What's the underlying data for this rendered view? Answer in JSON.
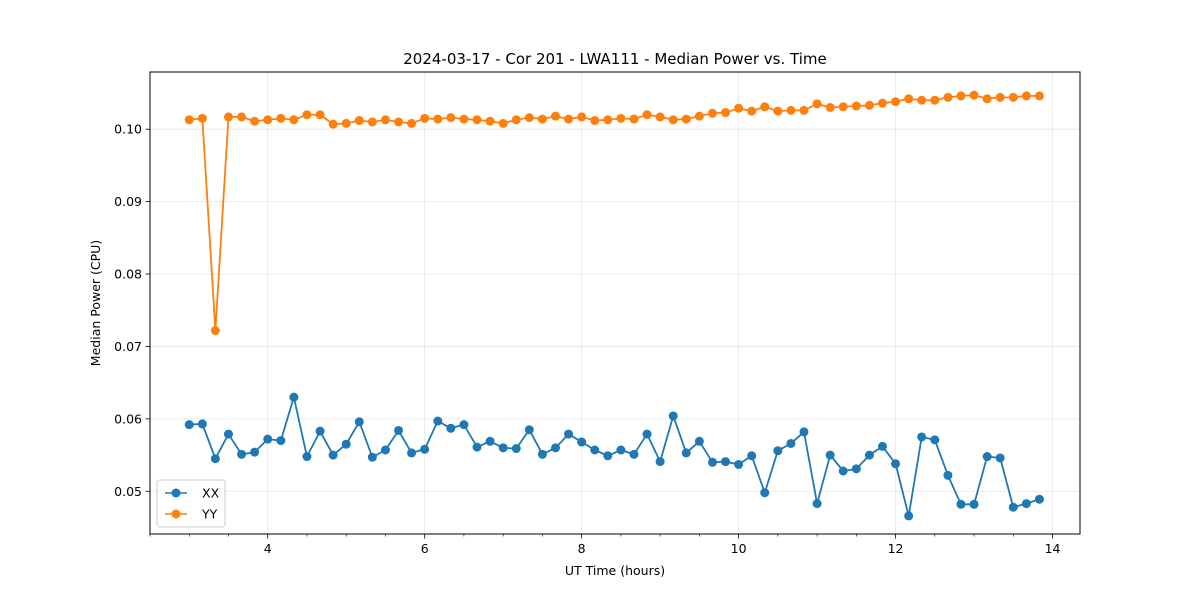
{
  "chart_data": {
    "type": "line",
    "title": "2024-03-17 - Cor 201 - LWA111 - Median Power vs. Time",
    "xlabel": "UT Time (hours)",
    "ylabel": "Median Power (CPU)",
    "xlim": [
      2.5,
      14.35
    ],
    "ylim": [
      0.0441,
      0.1079
    ],
    "xticks": [
      4,
      6,
      8,
      10,
      12,
      14
    ],
    "yticks": [
      0.05,
      0.06,
      0.07,
      0.08,
      0.09,
      0.1
    ],
    "xtick_labels": [
      "4",
      "6",
      "8",
      "10",
      "12",
      "14"
    ],
    "ytick_labels": [
      "0.05",
      "0.06",
      "0.07",
      "0.08",
      "0.09",
      "0.10"
    ],
    "grid": true,
    "legend_position": "lower-left",
    "x": [
      3.0,
      3.167,
      3.333,
      3.5,
      3.667,
      3.833,
      4.0,
      4.167,
      4.333,
      4.5,
      4.667,
      4.833,
      5.0,
      5.167,
      5.333,
      5.5,
      5.667,
      5.833,
      6.0,
      6.167,
      6.333,
      6.5,
      6.667,
      6.833,
      7.0,
      7.167,
      7.333,
      7.5,
      7.667,
      7.833,
      8.0,
      8.167,
      8.333,
      8.5,
      8.667,
      8.833,
      9.0,
      9.167,
      9.333,
      9.5,
      9.667,
      9.833,
      10.0,
      10.167,
      10.333,
      10.5,
      10.667,
      10.833,
      11.0,
      11.167,
      11.333,
      11.5,
      11.667,
      11.833,
      12.0,
      12.167,
      12.333,
      12.5,
      12.667,
      12.833,
      13.0,
      13.167,
      13.333,
      13.5,
      13.667,
      13.833
    ],
    "series": [
      {
        "name": "XX",
        "color": "#1f77b4",
        "values": [
          0.0592,
          0.0593,
          0.0545,
          0.0579,
          0.0551,
          0.0554,
          0.0572,
          0.057,
          0.063,
          0.0548,
          0.0583,
          0.055,
          0.0565,
          0.0596,
          0.0547,
          0.0557,
          0.0584,
          0.0553,
          0.0558,
          0.0597,
          0.0587,
          0.0592,
          0.0561,
          0.0569,
          0.056,
          0.0559,
          0.0585,
          0.0551,
          0.056,
          0.0579,
          0.0568,
          0.0557,
          0.0549,
          0.0557,
          0.0551,
          0.0579,
          0.0541,
          0.0604,
          0.0553,
          0.0569,
          0.054,
          0.0541,
          0.0537,
          0.0549,
          0.0498,
          0.0556,
          0.0566,
          0.0582,
          0.0483,
          0.055,
          0.0528,
          0.0531,
          0.055,
          0.0562,
          0.0538,
          0.0466,
          0.0575,
          0.0571,
          0.0522,
          0.0482,
          0.0482,
          0.0548,
          0.0546,
          0.0478,
          0.0483,
          0.0489
        ]
      },
      {
        "name": "YY",
        "color": "#ff7f0e",
        "values": [
          0.1013,
          0.1015,
          0.0722,
          0.1017,
          0.1017,
          0.1011,
          0.1013,
          0.1015,
          0.1013,
          0.102,
          0.102,
          0.1007,
          0.1008,
          0.1012,
          0.101,
          0.1013,
          0.101,
          0.1008,
          0.1015,
          0.1014,
          0.1016,
          0.1014,
          0.1013,
          0.1011,
          0.1008,
          0.1013,
          0.1016,
          0.1014,
          0.1018,
          0.1014,
          0.1017,
          0.1012,
          0.1013,
          0.1015,
          0.1014,
          0.102,
          0.1017,
          0.1013,
          0.1014,
          0.1018,
          0.1022,
          0.1023,
          0.1029,
          0.1025,
          0.1031,
          0.1025,
          0.1026,
          0.1026,
          0.1035,
          0.103,
          0.1031,
          0.1032,
          0.1033,
          0.1036,
          0.1038,
          0.1042,
          0.104,
          0.104,
          0.1044,
          0.1046,
          0.1047,
          0.1042,
          0.1044,
          0.1044,
          0.1046,
          0.1046
        ]
      }
    ]
  }
}
